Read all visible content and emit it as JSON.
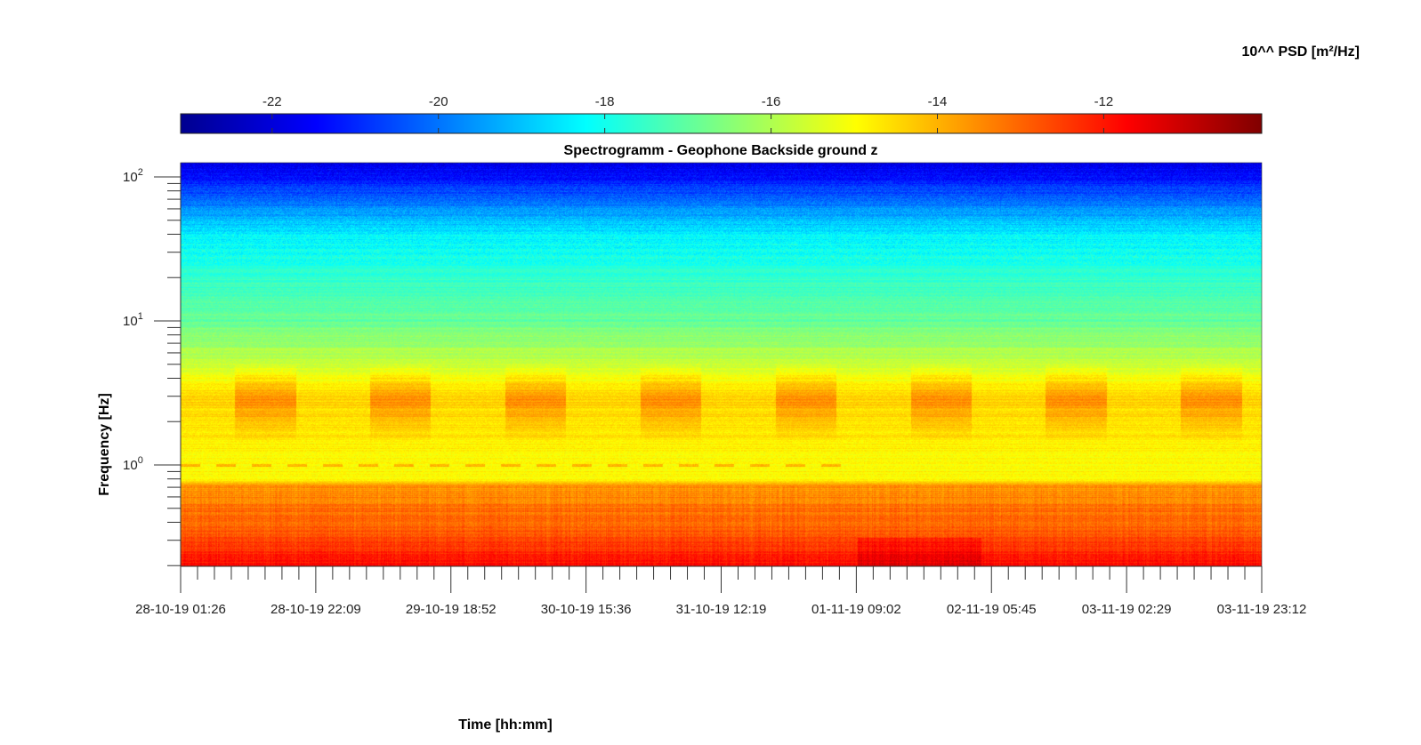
{
  "chart_data": {
    "type": "heatmap",
    "title": "Spectrogramm - Geophone Backside ground z",
    "xlabel": "Time [hh:mm]",
    "ylabel": "Frequency [Hz]",
    "colorbar_label": "10^^ PSD [m²/Hz]",
    "colormap": "jet",
    "y_scale": "log",
    "ylim": [
      0.2,
      125
    ],
    "clim": [
      -23.1,
      -10.1
    ],
    "colorbar_ticks": [
      "-22",
      "-20",
      "-18",
      "-16",
      "-14",
      "-12"
    ],
    "colorbar_tick_values": [
      -22,
      -20,
      -18,
      -16,
      -14,
      -12
    ],
    "y_ticks": [
      {
        "value": 1,
        "base": "10",
        "exp": "0"
      },
      {
        "value": 10,
        "base": "10",
        "exp": "1"
      },
      {
        "value": 100,
        "base": "10",
        "exp": "2"
      }
    ],
    "x_ticks": [
      "28-10-19 01:26",
      "28-10-19 22:09",
      "29-10-19 18:52",
      "30-10-19 15:36",
      "31-10-19 12:19",
      "01-11-19 09:02",
      "02-11-19 05:45",
      "03-11-19 02:29",
      "03-11-19 23:12"
    ],
    "x_minor_per_major": 8,
    "psd_profile": [
      {
        "f": 0.2,
        "psd": -11.8
      },
      {
        "f": 0.3,
        "psd": -12.6
      },
      {
        "f": 0.5,
        "psd": -13.2
      },
      {
        "f": 0.72,
        "psd": -13.6
      },
      {
        "f": 0.8,
        "psd": -14.8
      },
      {
        "f": 1.0,
        "psd": -15.0
      },
      {
        "f": 2.0,
        "psd": -14.6
      },
      {
        "f": 3.0,
        "psd": -14.4
      },
      {
        "f": 5.0,
        "psd": -15.6
      },
      {
        "f": 10.0,
        "psd": -16.9
      },
      {
        "f": 20.0,
        "psd": -17.6
      },
      {
        "f": 40.0,
        "psd": -18.4
      },
      {
        "f": 60.0,
        "psd": -19.6
      },
      {
        "f": 90.0,
        "psd": -21.0
      },
      {
        "f": 125.0,
        "psd": -21.8
      }
    ]
  }
}
